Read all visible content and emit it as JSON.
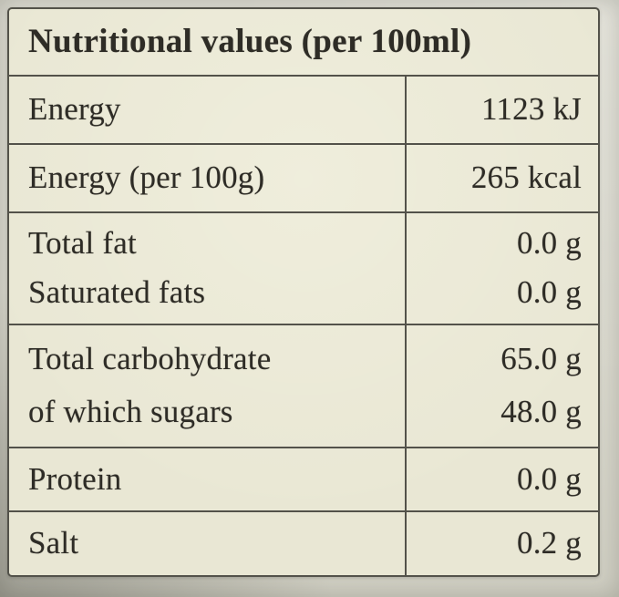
{
  "label": {
    "title": "Nutritional values (per 100ml)",
    "rows": [
      {
        "lines": [
          {
            "name": "Energy",
            "value": "1123 kJ"
          }
        ]
      },
      {
        "lines": [
          {
            "name": "Energy (per 100g)",
            "value": "265 kcal"
          }
        ]
      },
      {
        "lines": [
          {
            "name": "Total fat",
            "value": "0.0 g"
          },
          {
            "name": "Saturated fats",
            "value": "0.0 g"
          }
        ]
      },
      {
        "lines": [
          {
            "name": "Total carbohydrate",
            "value": "65.0 g"
          },
          {
            "name": "of which sugars",
            "value": "48.0 g"
          }
        ]
      },
      {
        "lines": [
          {
            "name": "Protein",
            "value": "0.0 g"
          }
        ]
      },
      {
        "lines": [
          {
            "name": "Salt",
            "value": "0.2 g"
          }
        ]
      }
    ],
    "colors": {
      "label_background": "#e9e7d4",
      "border": "#53524a",
      "text": "#2e2c26",
      "photo_background": "#d8d7cc"
    }
  }
}
